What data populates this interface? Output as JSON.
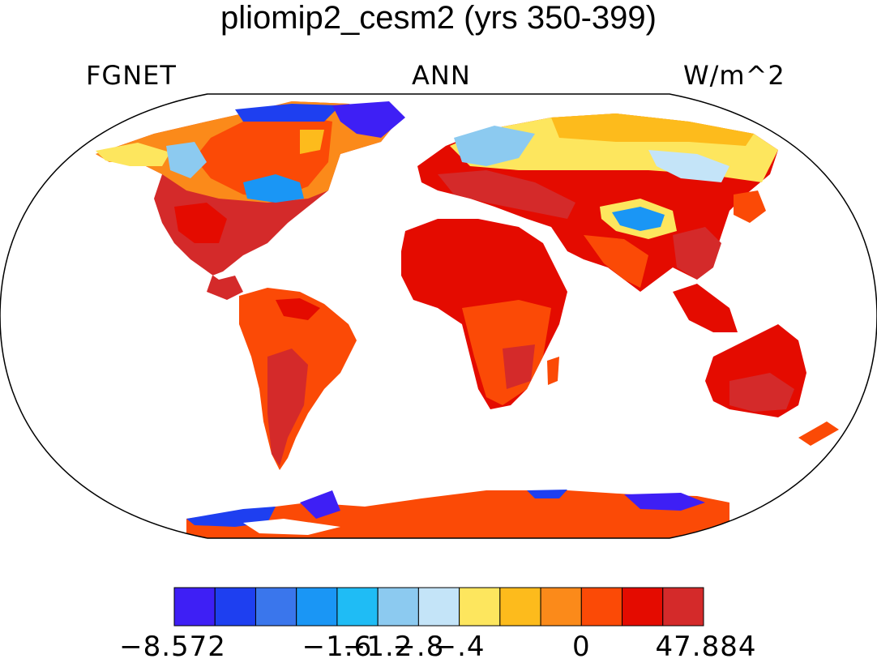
{
  "title": "pliomip2_cesm2 (yrs 350-399)",
  "left_label": "FGNET",
  "center_label": "ANN",
  "right_label": "W/m^2",
  "colorbar": {
    "colors": [
      "#3e1ff5",
      "#1e3ff0",
      "#3a76ec",
      "#1a96f5",
      "#1fbcf5",
      "#8ccaf0",
      "#c4e4f8",
      "#fde65e",
      "#fdbb1c",
      "#fb8a1a",
      "#fb4a06",
      "#e40b00",
      "#d42a2a"
    ],
    "tick_labels": [
      "−8.572",
      "−1.6",
      "−1.2",
      "−.8",
      "−.4",
      "0",
      "47.884"
    ]
  },
  "legend_colors": {
    "land_warm": "#e40b00",
    "land_hot": "#d42a2a",
    "land_orange": "#fb4a06",
    "antarctica": "#fb4a06",
    "ocean": "#ffffff"
  }
}
